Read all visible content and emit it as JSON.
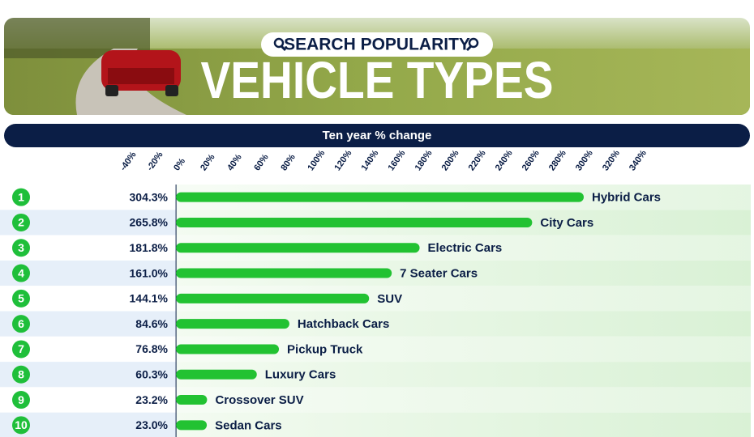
{
  "chart_data": {
    "type": "bar",
    "orientation": "horizontal",
    "header_label": "SEARCH POPULARITY",
    "title": "VEHICLE TYPES",
    "subtitle": "Ten year % change",
    "ranks": [
      1,
      2,
      3,
      4,
      5,
      6,
      7,
      8,
      9,
      10
    ],
    "categories": [
      "Hybrid Cars",
      "City Cars",
      "Electric Cars",
      "7 Seater Cars",
      "SUV",
      "Hatchback Cars",
      "Pickup Truck",
      "Luxury Cars",
      "Crossover SUV",
      "Sedan Cars"
    ],
    "values": [
      304.3,
      265.8,
      181.8,
      161.0,
      144.1,
      84.6,
      76.8,
      60.3,
      23.2,
      23.0
    ],
    "value_labels": [
      "304.3%",
      "265.8%",
      "181.8%",
      "161.0%",
      "144.1%",
      "84.6%",
      "76.8%",
      "60.3%",
      "23.2%",
      "23.0%"
    ],
    "color": "#22c232",
    "xlim": [
      -40,
      340
    ],
    "xticks": [
      {
        "value": -40,
        "label": "-40%"
      },
      {
        "value": -20,
        "label": "-20%"
      },
      {
        "value": 0,
        "label": "0%"
      },
      {
        "value": 20,
        "label": "20%"
      },
      {
        "value": 40,
        "label": "40%"
      },
      {
        "value": 60,
        "label": "60%"
      },
      {
        "value": 80,
        "label": "80%"
      },
      {
        "value": 100,
        "label": "100%"
      },
      {
        "value": 120,
        "label": "120%"
      },
      {
        "value": 140,
        "label": "140%"
      },
      {
        "value": 160,
        "label": "160%"
      },
      {
        "value": 180,
        "label": "180%"
      },
      {
        "value": 200,
        "label": "200%"
      },
      {
        "value": 220,
        "label": "220%"
      },
      {
        "value": 240,
        "label": "240%"
      },
      {
        "value": 260,
        "label": "260%"
      },
      {
        "value": 280,
        "label": "280%"
      },
      {
        "value": 300,
        "label": "300%"
      },
      {
        "value": 320,
        "label": "320%"
      },
      {
        "value": 340,
        "label": "340%"
      }
    ],
    "grid": false
  }
}
